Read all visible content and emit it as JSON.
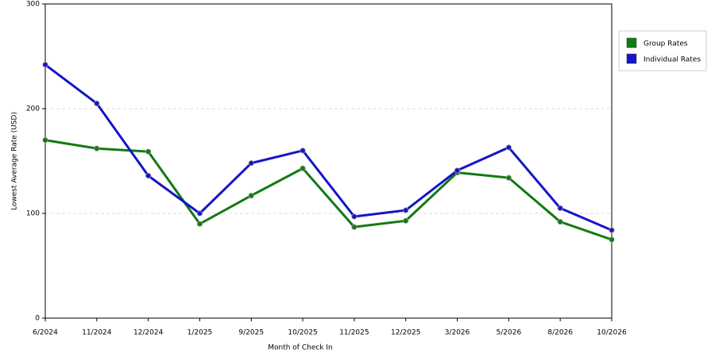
{
  "chart_data": {
    "type": "line",
    "x_label": "Month of Check In",
    "y_label": "Lowest Average Rate (USD)",
    "categories": [
      "6/2024",
      "11/2024",
      "12/2024",
      "1/2025",
      "9/2025",
      "10/2025",
      "11/2025",
      "12/2025",
      "3/2026",
      "5/2026",
      "8/2026",
      "10/2026"
    ],
    "series": [
      {
        "name": "Group Rates",
        "color": "#137a13",
        "values": [
          170,
          162,
          159,
          90,
          117,
          143,
          87,
          93,
          139,
          134,
          92,
          75
        ]
      },
      {
        "name": "Individual Rates",
        "color": "#1515c8",
        "values": [
          242,
          205,
          136,
          100,
          148,
          160,
          97,
          103,
          141,
          163,
          105,
          84
        ]
      }
    ],
    "ylim": [
      0,
      300
    ],
    "yticks": [
      0,
      100,
      200,
      300
    ],
    "grid": true,
    "legend": "right"
  }
}
